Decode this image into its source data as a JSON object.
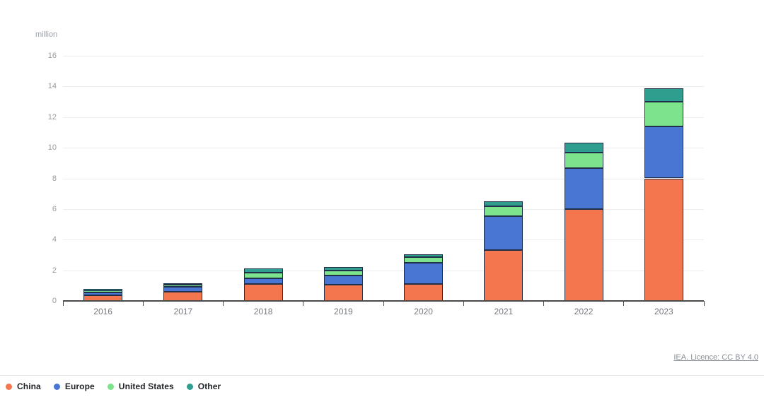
{
  "unit_label": "million",
  "footer": {
    "license_text": "IEA. Licence: CC BY 4.0"
  },
  "chart_data": {
    "type": "bar",
    "stacked": true,
    "title": "",
    "xlabel": "",
    "ylabel": "million",
    "categories": [
      "2016",
      "2017",
      "2018",
      "2019",
      "2020",
      "2021",
      "2022",
      "2023"
    ],
    "series": [
      {
        "name": "China",
        "color": "#f4764f",
        "values": [
          0.35,
          0.6,
          1.1,
          1.05,
          1.12,
          3.3,
          6.0,
          8.0
        ]
      },
      {
        "name": "Europe",
        "color": "#4a76d3",
        "values": [
          0.2,
          0.32,
          0.38,
          0.63,
          1.38,
          2.25,
          2.65,
          3.4
        ]
      },
      {
        "name": "United States",
        "color": "#7de38d",
        "values": [
          0.15,
          0.16,
          0.37,
          0.3,
          0.35,
          0.64,
          1.03,
          1.6
        ]
      },
      {
        "name": "Other",
        "color": "#2f9e8f",
        "values": [
          0.05,
          0.08,
          0.25,
          0.22,
          0.21,
          0.31,
          0.66,
          0.9
        ]
      }
    ],
    "ylim": [
      0,
      16
    ],
    "yticks": [
      0,
      2,
      4,
      6,
      8,
      10,
      12,
      14,
      16
    ],
    "grid": "horizontal",
    "legend_position": "bottom-left",
    "colors": {
      "china": "#f4764f",
      "europe": "#4a76d3",
      "united_states": "#7de38d",
      "other": "#2f9e8f",
      "segment_outline": "#20304b",
      "axis": "#4a4a4a",
      "gridline": "#ededed",
      "tick_text": "#9b9b9b"
    }
  }
}
